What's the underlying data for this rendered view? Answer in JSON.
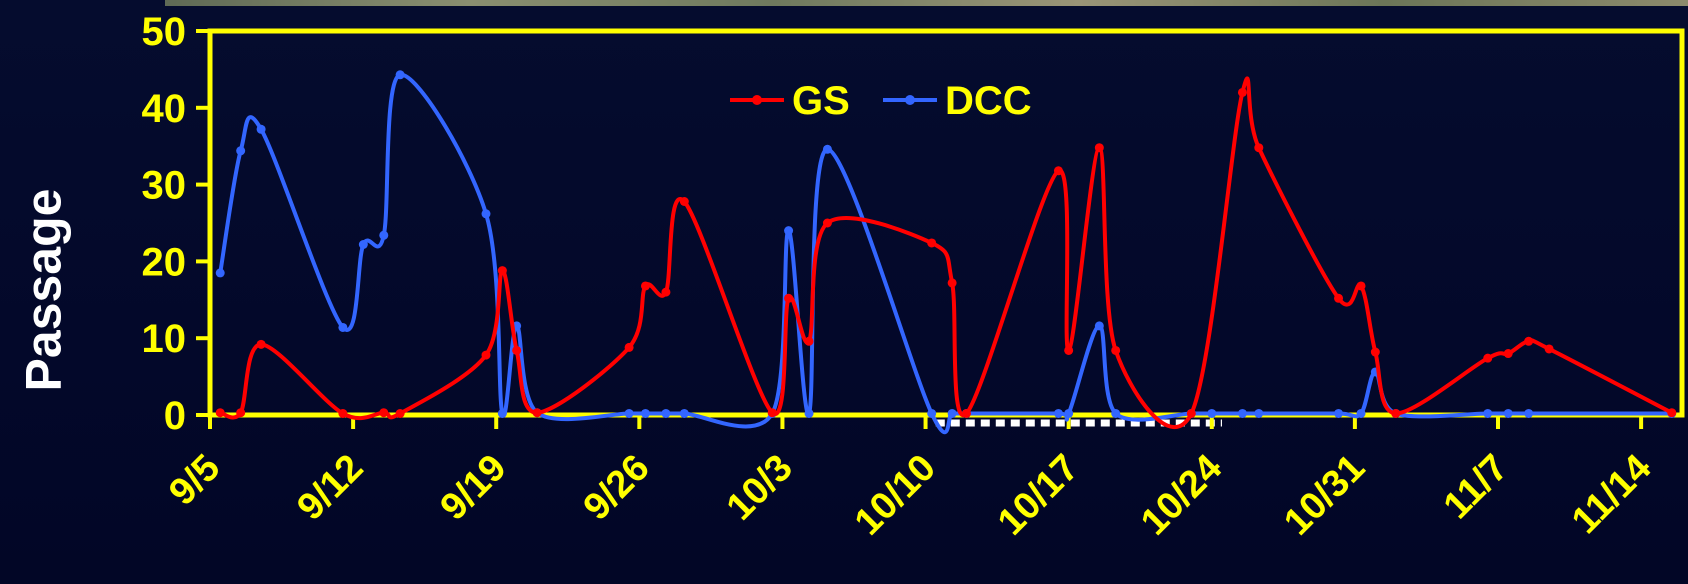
{
  "chart_data": {
    "type": "line",
    "title": "",
    "xlabel": "",
    "ylabel": "Passage",
    "ylim": [
      0,
      50
    ],
    "y_ticks": [
      "0",
      "10",
      "20",
      "30",
      "40",
      "50"
    ],
    "x_range_days": [
      0,
      72
    ],
    "x_tick_days": [
      0,
      7,
      14,
      21,
      28,
      35,
      42,
      49,
      56,
      63,
      70
    ],
    "x_ticks": [
      "9/5",
      "9/12",
      "9/19",
      "9/26",
      "10/3",
      "10/10",
      "10/17",
      "10/24",
      "10/31",
      "11/7",
      "11/14"
    ],
    "legend_position": "top-center",
    "grid": false,
    "highlight_span_days": [
      35.5,
      49.5
    ],
    "colors": {
      "axis": "#ffff00",
      "GS": "#ff0000",
      "DCC": "#3366ff",
      "highlight": "#ffffff"
    },
    "series": [
      {
        "name": "GS",
        "points": [
          [
            0.5,
            0.3
          ],
          [
            1.5,
            0.3
          ],
          [
            2.5,
            9.2
          ],
          [
            6.5,
            0.2
          ],
          [
            8.5,
            0.3
          ],
          [
            9.3,
            0.2
          ],
          [
            13.5,
            7.8
          ],
          [
            14.3,
            18.8
          ],
          [
            15.0,
            8.4
          ],
          [
            16.0,
            0.3
          ],
          [
            20.5,
            8.8
          ],
          [
            21.3,
            16.8
          ],
          [
            22.3,
            16.0
          ],
          [
            23.2,
            27.8
          ],
          [
            27.5,
            0.3
          ],
          [
            28.3,
            15.2
          ],
          [
            29.3,
            9.6
          ],
          [
            30.2,
            25.0
          ],
          [
            35.3,
            22.4
          ],
          [
            36.3,
            17.2
          ],
          [
            37.0,
            0.2
          ],
          [
            41.5,
            31.8
          ],
          [
            42.0,
            8.4
          ],
          [
            43.5,
            34.8
          ],
          [
            44.3,
            8.4
          ],
          [
            48.0,
            0.2
          ],
          [
            50.5,
            42.0
          ],
          [
            51.3,
            34.8
          ],
          [
            55.2,
            15.2
          ],
          [
            56.3,
            16.8
          ],
          [
            57.0,
            8.2
          ],
          [
            58.0,
            0.2
          ],
          [
            62.5,
            7.4
          ],
          [
            63.5,
            8.0
          ],
          [
            64.5,
            9.6
          ],
          [
            65.5,
            8.6
          ],
          [
            71.5,
            0.3
          ]
        ]
      },
      {
        "name": "DCC",
        "points": [
          [
            0.5,
            18.5
          ],
          [
            1.5,
            34.4
          ],
          [
            2.5,
            37.2
          ],
          [
            6.5,
            11.4
          ],
          [
            7.5,
            22.2
          ],
          [
            8.5,
            23.4
          ],
          [
            9.3,
            44.3
          ],
          [
            13.5,
            26.2
          ],
          [
            14.3,
            0.2
          ],
          [
            15.0,
            11.6
          ],
          [
            16.0,
            0.3
          ],
          [
            20.5,
            0.2
          ],
          [
            21.3,
            0.2
          ],
          [
            22.3,
            0.2
          ],
          [
            23.2,
            0.2
          ],
          [
            27.5,
            0.2
          ],
          [
            28.3,
            24.0
          ],
          [
            29.3,
            0.2
          ],
          [
            30.2,
            34.6
          ],
          [
            35.3,
            0.2
          ],
          [
            36.3,
            0.2
          ],
          [
            37.0,
            0.2
          ],
          [
            41.5,
            0.2
          ],
          [
            42.0,
            0.2
          ],
          [
            43.5,
            11.6
          ],
          [
            44.3,
            0.2
          ],
          [
            48.0,
            0.2
          ],
          [
            49.0,
            0.2
          ],
          [
            50.5,
            0.2
          ],
          [
            51.3,
            0.2
          ],
          [
            55.2,
            0.2
          ],
          [
            56.3,
            0.2
          ],
          [
            57.0,
            5.6
          ],
          [
            58.0,
            0.2
          ],
          [
            62.5,
            0.2
          ],
          [
            63.5,
            0.2
          ],
          [
            64.5,
            0.2
          ],
          [
            71.5,
            0.2
          ]
        ]
      }
    ]
  }
}
